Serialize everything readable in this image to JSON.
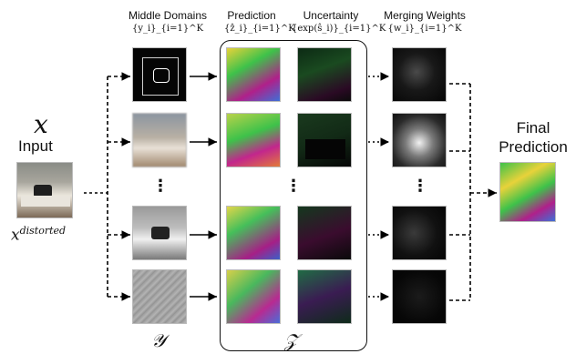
{
  "input": {
    "symbol": "x",
    "label": "Input",
    "distorted_symbol": "x",
    "distorted_superscript": "distorted"
  },
  "columns": {
    "middle_domains": {
      "title": "Middle Domains",
      "formula": "{y_i}_{i=1}^K",
      "bottom_symbol": "𝒴"
    },
    "prediction": {
      "title": "Prediction",
      "formula": "{ẑ_i}_{i=1}^K"
    },
    "uncertainty": {
      "title": "Uncertainty",
      "formula": "{exp(ŝ_i)}_{i=1}^K"
    },
    "merging_weights": {
      "title": "Merging Weights",
      "formula": "{w_i}_{i=1}^K"
    },
    "z_group_symbol": "𝒵"
  },
  "output": {
    "line1": "Final",
    "line2": "Prediction"
  },
  "colors": {
    "normal_green": "#3ec24a",
    "normal_magenta": "#b0208a",
    "normal_yellow": "#e8d23a",
    "normal_blue": "#3e6fd6",
    "dark": "#0b0b0b"
  }
}
